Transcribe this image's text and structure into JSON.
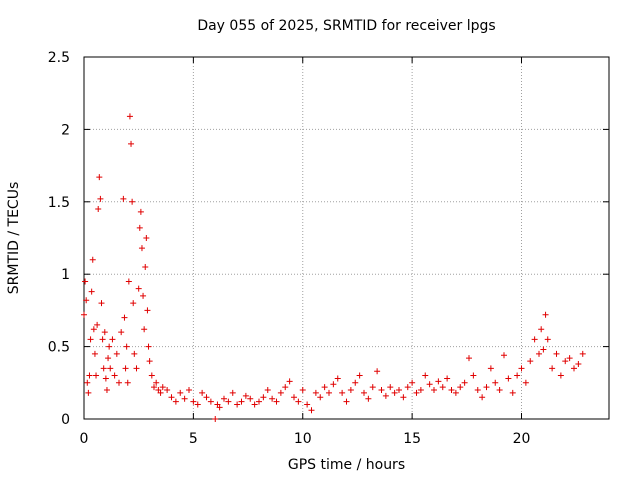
{
  "chart_data": {
    "type": "scatter",
    "title": "Day 055 of 2025, SRMTID for receiver lpgs",
    "xlabel": "GPS time / hours",
    "ylabel": "SRMTID / TECUs",
    "xlim": [
      0,
      24
    ],
    "ylim": [
      0,
      2.5
    ],
    "xticks": [
      0,
      5,
      10,
      15,
      20
    ],
    "yticks": [
      0,
      0.5,
      1,
      1.5,
      2,
      2.5
    ],
    "ytick_labels": [
      "0",
      "0.5",
      "1",
      "1.5",
      "2",
      "2.5"
    ],
    "grid": true,
    "marker": "+",
    "series": [
      {
        "name": "SRMTID",
        "color": "#e00000",
        "x": [
          0.0,
          0.05,
          0.1,
          0.15,
          0.2,
          0.25,
          0.3,
          0.35,
          0.4,
          0.45,
          0.5,
          0.55,
          0.6,
          0.65,
          0.7,
          0.75,
          0.8,
          0.85,
          0.9,
          0.95,
          1.0,
          1.05,
          1.1,
          1.15,
          1.2,
          1.3,
          1.4,
          1.5,
          1.6,
          1.7,
          1.8,
          1.85,
          1.9,
          1.95,
          2.0,
          2.05,
          2.1,
          2.15,
          2.2,
          2.25,
          2.3,
          2.4,
          2.5,
          2.55,
          2.6,
          2.65,
          2.7,
          2.75,
          2.8,
          2.85,
          2.9,
          2.95,
          3.0,
          3.1,
          3.2,
          3.3,
          3.4,
          3.5,
          3.6,
          3.8,
          4.0,
          4.2,
          4.4,
          4.6,
          4.8,
          5.0,
          5.2,
          5.4,
          5.6,
          5.8,
          6.0,
          6.1,
          6.2,
          6.4,
          6.6,
          6.8,
          7.0,
          7.2,
          7.4,
          7.6,
          7.8,
          8.0,
          8.2,
          8.4,
          8.6,
          8.8,
          9.0,
          9.2,
          9.4,
          9.6,
          9.8,
          10.0,
          10.2,
          10.4,
          10.6,
          10.8,
          11.0,
          11.2,
          11.4,
          11.6,
          11.8,
          12.0,
          12.2,
          12.4,
          12.6,
          12.8,
          13.0,
          13.2,
          13.4,
          13.6,
          13.8,
          14.0,
          14.2,
          14.4,
          14.6,
          14.8,
          15.0,
          15.2,
          15.4,
          15.6,
          15.8,
          16.0,
          16.2,
          16.4,
          16.6,
          16.8,
          17.0,
          17.2,
          17.4,
          17.6,
          17.8,
          18.0,
          18.2,
          18.4,
          18.6,
          18.8,
          19.0,
          19.2,
          19.4,
          19.6,
          19.8,
          20.0,
          20.2,
          20.4,
          20.6,
          20.8,
          20.9,
          21.0,
          21.1,
          21.2,
          21.4,
          21.6,
          21.8,
          22.0,
          22.2,
          22.4,
          22.6,
          22.8
        ],
        "y": [
          0.72,
          0.95,
          0.82,
          0.25,
          0.18,
          0.3,
          0.55,
          0.88,
          1.1,
          0.62,
          0.45,
          0.3,
          0.65,
          1.45,
          1.67,
          1.52,
          0.8,
          0.55,
          0.35,
          0.6,
          0.28,
          0.2,
          0.42,
          0.5,
          0.35,
          0.55,
          0.3,
          0.45,
          0.25,
          0.6,
          1.52,
          0.7,
          0.35,
          0.5,
          0.25,
          0.95,
          2.09,
          1.9,
          1.5,
          0.8,
          0.45,
          0.35,
          0.9,
          1.32,
          1.43,
          1.18,
          0.85,
          0.62,
          1.05,
          1.25,
          0.75,
          0.5,
          0.4,
          0.3,
          0.22,
          0.25,
          0.2,
          0.18,
          0.22,
          0.2,
          0.15,
          0.12,
          0.18,
          0.14,
          0.2,
          0.12,
          0.1,
          0.18,
          0.15,
          0.12,
          0.0,
          0.1,
          0.08,
          0.14,
          0.12,
          0.18,
          0.1,
          0.12,
          0.16,
          0.14,
          0.1,
          0.12,
          0.15,
          0.2,
          0.14,
          0.12,
          0.18,
          0.22,
          0.26,
          0.15,
          0.12,
          0.2,
          0.1,
          0.06,
          0.18,
          0.15,
          0.22,
          0.18,
          0.24,
          0.28,
          0.18,
          0.12,
          0.2,
          0.25,
          0.3,
          0.18,
          0.14,
          0.22,
          0.33,
          0.2,
          0.16,
          0.22,
          0.18,
          0.2,
          0.15,
          0.22,
          0.25,
          0.18,
          0.2,
          0.3,
          0.24,
          0.2,
          0.26,
          0.22,
          0.28,
          0.2,
          0.18,
          0.22,
          0.25,
          0.42,
          0.3,
          0.2,
          0.15,
          0.22,
          0.35,
          0.25,
          0.2,
          0.44,
          0.28,
          0.18,
          0.3,
          0.35,
          0.25,
          0.4,
          0.55,
          0.45,
          0.62,
          0.48,
          0.72,
          0.55,
          0.35,
          0.45,
          0.3,
          0.4,
          0.42,
          0.35,
          0.38,
          0.45
        ]
      }
    ]
  }
}
